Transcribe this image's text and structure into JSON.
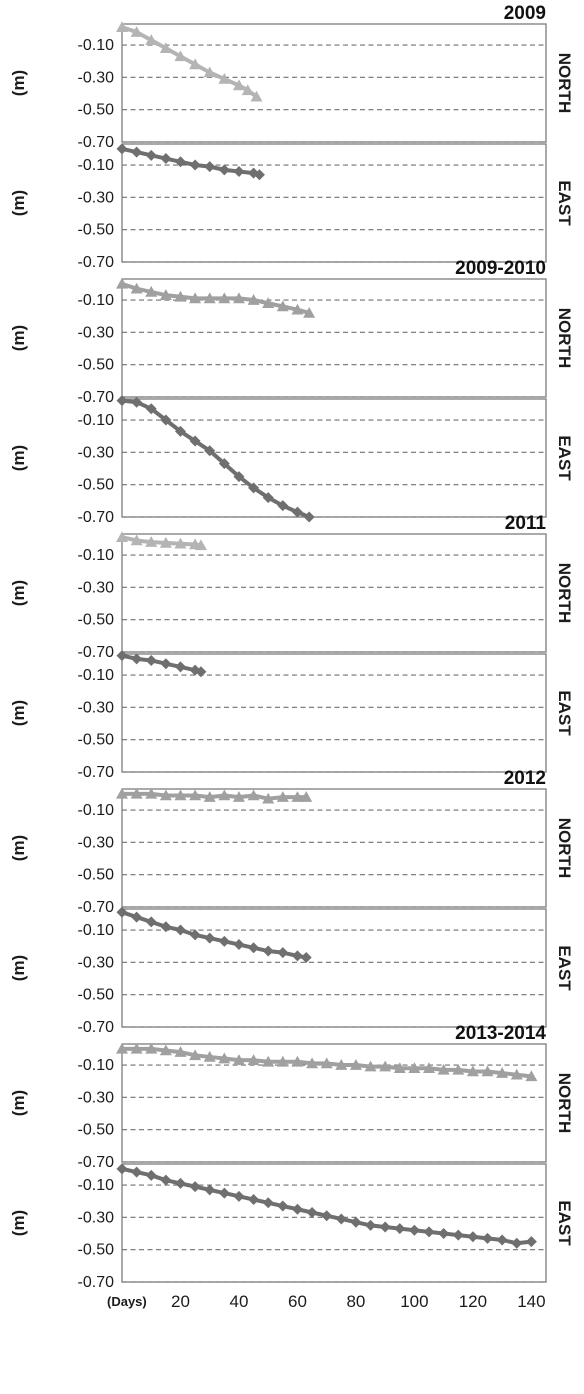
{
  "chart_data": [
    {
      "type": "scatter",
      "title": "2009",
      "component": "NORTH",
      "ylabel": "(m)",
      "color": "#b4b4b4",
      "marker": "triangle",
      "yticks": [
        "-0.10",
        "-0.30",
        "-0.50",
        "-0.70"
      ],
      "ylim": [
        -0.7,
        0.03
      ],
      "xlim": [
        0,
        145
      ],
      "points": [
        [
          0,
          0.01
        ],
        [
          5,
          -0.02
        ],
        [
          10,
          -0.07
        ],
        [
          15,
          -0.12
        ],
        [
          20,
          -0.17
        ],
        [
          25,
          -0.22
        ],
        [
          30,
          -0.27
        ],
        [
          35,
          -0.31
        ],
        [
          40,
          -0.35
        ],
        [
          43,
          -0.38
        ],
        [
          46,
          -0.42
        ]
      ]
    },
    {
      "type": "scatter",
      "title": "",
      "component": "EAST",
      "ylabel": "(m)",
      "color": "#6f6f6f",
      "marker": "diamond",
      "yticks": [
        "-0.10",
        "-0.30",
        "-0.50",
        "-0.70"
      ],
      "ylim": [
        -0.7,
        0.03
      ],
      "xlim": [
        0,
        145
      ],
      "points": [
        [
          0,
          0.0
        ],
        [
          5,
          -0.02
        ],
        [
          10,
          -0.04
        ],
        [
          15,
          -0.06
        ],
        [
          20,
          -0.08
        ],
        [
          25,
          -0.1
        ],
        [
          30,
          -0.11
        ],
        [
          35,
          -0.13
        ],
        [
          40,
          -0.14
        ],
        [
          45,
          -0.15
        ],
        [
          47,
          -0.16
        ]
      ]
    },
    {
      "type": "scatter",
      "title": "2009-2010",
      "component": "NORTH",
      "ylabel": "(m)",
      "color": "#a0a0a0",
      "marker": "triangle",
      "yticks": [
        "-0.10",
        "-0.30",
        "-0.50",
        "-0.70"
      ],
      "ylim": [
        -0.7,
        0.03
      ],
      "xlim": [
        0,
        145
      ],
      "points": [
        [
          0,
          0.0
        ],
        [
          5,
          -0.03
        ],
        [
          10,
          -0.05
        ],
        [
          15,
          -0.07
        ],
        [
          20,
          -0.08
        ],
        [
          25,
          -0.09
        ],
        [
          30,
          -0.09
        ],
        [
          35,
          -0.09
        ],
        [
          40,
          -0.09
        ],
        [
          45,
          -0.1
        ],
        [
          50,
          -0.12
        ],
        [
          55,
          -0.14
        ],
        [
          60,
          -0.16
        ],
        [
          64,
          -0.18
        ]
      ]
    },
    {
      "type": "scatter",
      "title": "",
      "component": "EAST",
      "ylabel": "(m)",
      "color": "#6f6f6f",
      "marker": "diamond",
      "yticks": [
        "-0.10",
        "-0.30",
        "-0.50",
        "-0.70"
      ],
      "ylim": [
        -0.7,
        0.03
      ],
      "xlim": [
        0,
        145
      ],
      "points": [
        [
          0,
          0.02
        ],
        [
          5,
          0.01
        ],
        [
          10,
          -0.03
        ],
        [
          15,
          -0.1
        ],
        [
          20,
          -0.17
        ],
        [
          25,
          -0.23
        ],
        [
          30,
          -0.29
        ],
        [
          35,
          -0.37
        ],
        [
          40,
          -0.45
        ],
        [
          45,
          -0.52
        ],
        [
          50,
          -0.58
        ],
        [
          55,
          -0.63
        ],
        [
          60,
          -0.67
        ],
        [
          64,
          -0.7
        ]
      ]
    },
    {
      "type": "scatter",
      "title": "2011",
      "component": "NORTH",
      "ylabel": "(m)",
      "color": "#b4b4b4",
      "marker": "triangle",
      "yticks": [
        "-0.10",
        "-0.30",
        "-0.50",
        "-0.70"
      ],
      "ylim": [
        -0.7,
        0.03
      ],
      "xlim": [
        0,
        145
      ],
      "points": [
        [
          0,
          0.01
        ],
        [
          5,
          -0.01
        ],
        [
          10,
          -0.02
        ],
        [
          15,
          -0.025
        ],
        [
          20,
          -0.03
        ],
        [
          25,
          -0.035
        ],
        [
          27,
          -0.04
        ]
      ]
    },
    {
      "type": "scatter",
      "title": "",
      "component": "EAST",
      "ylabel": "(m)",
      "color": "#6f6f6f",
      "marker": "diamond",
      "yticks": [
        "-0.10",
        "-0.30",
        "-0.50",
        "-0.70"
      ],
      "ylim": [
        -0.7,
        0.03
      ],
      "xlim": [
        0,
        145
      ],
      "points": [
        [
          0,
          0.02
        ],
        [
          5,
          0.0
        ],
        [
          10,
          -0.01
        ],
        [
          15,
          -0.03
        ],
        [
          20,
          -0.05
        ],
        [
          25,
          -0.07
        ],
        [
          27,
          -0.08
        ]
      ]
    },
    {
      "type": "scatter",
      "title": "2012",
      "component": "NORTH",
      "ylabel": "(m)",
      "color": "#a0a0a0",
      "marker": "triangle",
      "yticks": [
        "-0.10",
        "-0.30",
        "-0.50",
        "-0.70"
      ],
      "ylim": [
        -0.7,
        0.03
      ],
      "xlim": [
        0,
        145
      ],
      "points": [
        [
          0,
          0.0
        ],
        [
          5,
          0.0
        ],
        [
          10,
          0.0
        ],
        [
          15,
          -0.01
        ],
        [
          20,
          -0.01
        ],
        [
          25,
          -0.01
        ],
        [
          30,
          -0.02
        ],
        [
          35,
          -0.01
        ],
        [
          40,
          -0.02
        ],
        [
          45,
          -0.01
        ],
        [
          50,
          -0.03
        ],
        [
          55,
          -0.02
        ],
        [
          60,
          -0.02
        ],
        [
          63,
          -0.02
        ]
      ]
    },
    {
      "type": "scatter",
      "title": "",
      "component": "EAST",
      "ylabel": "(m)",
      "color": "#6f6f6f",
      "marker": "diamond",
      "yticks": [
        "-0.10",
        "-0.30",
        "-0.50",
        "-0.70"
      ],
      "ylim": [
        -0.7,
        0.03
      ],
      "xlim": [
        0,
        145
      ],
      "points": [
        [
          0,
          0.01
        ],
        [
          5,
          -0.02
        ],
        [
          10,
          -0.05
        ],
        [
          15,
          -0.08
        ],
        [
          20,
          -0.1
        ],
        [
          25,
          -0.13
        ],
        [
          30,
          -0.15
        ],
        [
          35,
          -0.17
        ],
        [
          40,
          -0.19
        ],
        [
          45,
          -0.21
        ],
        [
          50,
          -0.23
        ],
        [
          55,
          -0.24
        ],
        [
          60,
          -0.26
        ],
        [
          63,
          -0.27
        ]
      ]
    },
    {
      "type": "scatter",
      "title": "2013-2014",
      "component": "NORTH",
      "ylabel": "(m)",
      "color": "#a0a0a0",
      "marker": "triangle",
      "yticks": [
        "-0.10",
        "-0.30",
        "-0.50",
        "-0.70"
      ],
      "ylim": [
        -0.7,
        0.03
      ],
      "xlim": [
        0,
        145
      ],
      "points": [
        [
          0,
          0.0
        ],
        [
          5,
          0.0
        ],
        [
          10,
          0.0
        ],
        [
          15,
          -0.01
        ],
        [
          20,
          -0.02
        ],
        [
          25,
          -0.04
        ],
        [
          30,
          -0.05
        ],
        [
          35,
          -0.06
        ],
        [
          40,
          -0.07
        ],
        [
          45,
          -0.07
        ],
        [
          50,
          -0.08
        ],
        [
          55,
          -0.08
        ],
        [
          60,
          -0.08
        ],
        [
          65,
          -0.09
        ],
        [
          70,
          -0.09
        ],
        [
          75,
          -0.1
        ],
        [
          80,
          -0.1
        ],
        [
          85,
          -0.11
        ],
        [
          90,
          -0.11
        ],
        [
          95,
          -0.12
        ],
        [
          100,
          -0.12
        ],
        [
          105,
          -0.12
        ],
        [
          110,
          -0.13
        ],
        [
          115,
          -0.13
        ],
        [
          120,
          -0.14
        ],
        [
          125,
          -0.14
        ],
        [
          130,
          -0.15
        ],
        [
          135,
          -0.16
        ],
        [
          140,
          -0.17
        ]
      ]
    },
    {
      "type": "scatter",
      "title": "",
      "component": "EAST",
      "ylabel": "(m)",
      "color": "#6f6f6f",
      "marker": "diamond",
      "yticks": [
        "-0.10",
        "-0.30",
        "-0.50",
        "-0.70"
      ],
      "ylim": [
        -0.7,
        0.03
      ],
      "xlim": [
        0,
        145
      ],
      "points": [
        [
          0,
          0.0
        ],
        [
          5,
          -0.02
        ],
        [
          10,
          -0.04
        ],
        [
          15,
          -0.07
        ],
        [
          20,
          -0.09
        ],
        [
          25,
          -0.11
        ],
        [
          30,
          -0.13
        ],
        [
          35,
          -0.15
        ],
        [
          40,
          -0.17
        ],
        [
          45,
          -0.19
        ],
        [
          50,
          -0.21
        ],
        [
          55,
          -0.23
        ],
        [
          60,
          -0.25
        ],
        [
          65,
          -0.27
        ],
        [
          70,
          -0.29
        ],
        [
          75,
          -0.31
        ],
        [
          80,
          -0.33
        ],
        [
          85,
          -0.35
        ],
        [
          90,
          -0.36
        ],
        [
          95,
          -0.37
        ],
        [
          100,
          -0.38
        ],
        [
          105,
          -0.39
        ],
        [
          110,
          -0.4
        ],
        [
          115,
          -0.41
        ],
        [
          120,
          -0.42
        ],
        [
          125,
          -0.43
        ],
        [
          130,
          -0.44
        ],
        [
          135,
          -0.46
        ],
        [
          140,
          -0.45
        ]
      ]
    }
  ],
  "x_axis": {
    "unit_label": "(Days)",
    "ticks": [
      20,
      40,
      60,
      80,
      100,
      120,
      140
    ]
  }
}
